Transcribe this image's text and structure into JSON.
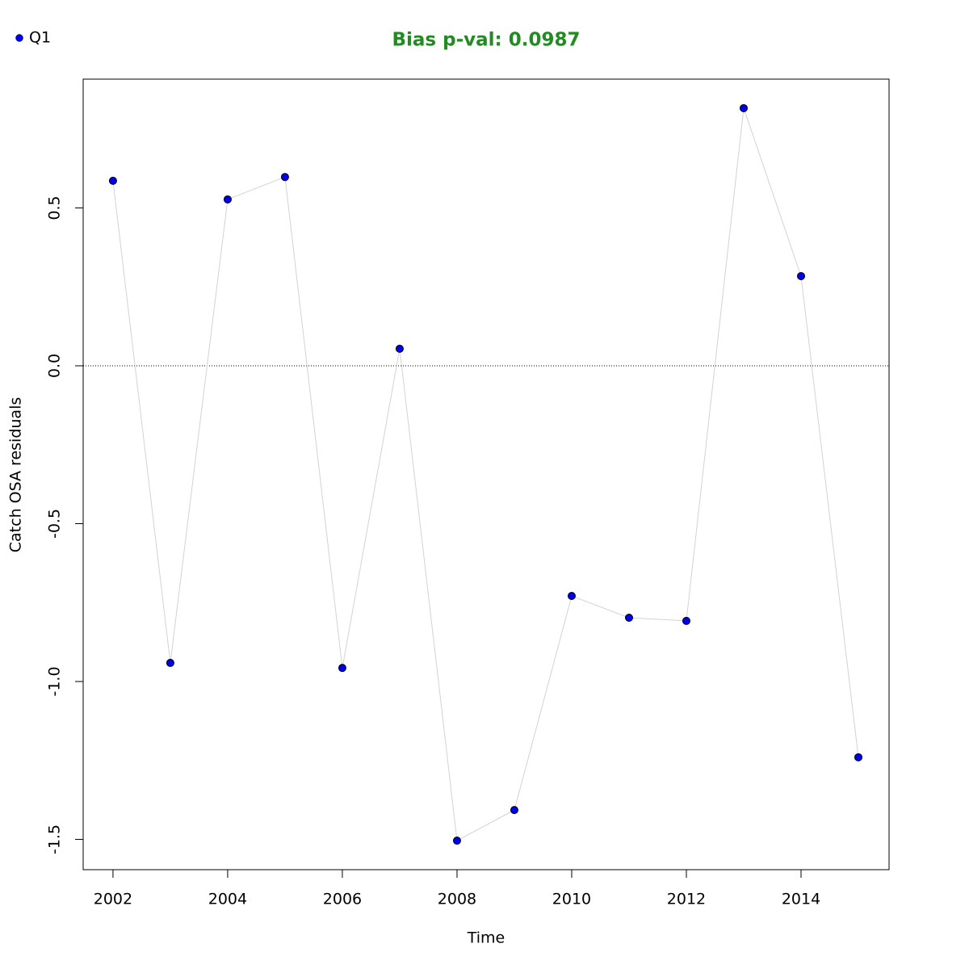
{
  "chart_data": {
    "type": "line",
    "title": "Bias p-val: 0.0987",
    "title_color": "#228b22",
    "x_label": "Time",
    "y_label": "Catch OSA residuals",
    "x": [
      2002,
      2003,
      2004,
      2005,
      2006,
      2007,
      2008,
      2009,
      2010,
      2011,
      2012,
      2013,
      2014,
      2015
    ],
    "series": [
      {
        "name": "Q1",
        "color": "#0000ee",
        "line_color": "#d3d3d3",
        "values": [
          0.586,
          -0.941,
          0.527,
          0.598,
          -0.957,
          0.054,
          -1.504,
          -1.407,
          -0.729,
          -0.798,
          -0.808,
          0.816,
          0.284,
          -1.24
        ]
      }
    ],
    "xlim": [
      2001.48,
      2015.535
    ],
    "ylim": [
      -1.596,
      0.908
    ],
    "xticks": [
      2002,
      2004,
      2006,
      2008,
      2010,
      2012,
      2014
    ],
    "yticks": [
      {
        "value": -1.5,
        "label": "-1.5"
      },
      {
        "value": -1,
        "label": "-1.0"
      },
      {
        "value": -0.5,
        "label": "-0.5"
      },
      {
        "value": 0,
        "label": "0.0"
      },
      {
        "value": 0.5,
        "label": "0.5"
      }
    ],
    "hline": 0,
    "legend": "top-left"
  }
}
